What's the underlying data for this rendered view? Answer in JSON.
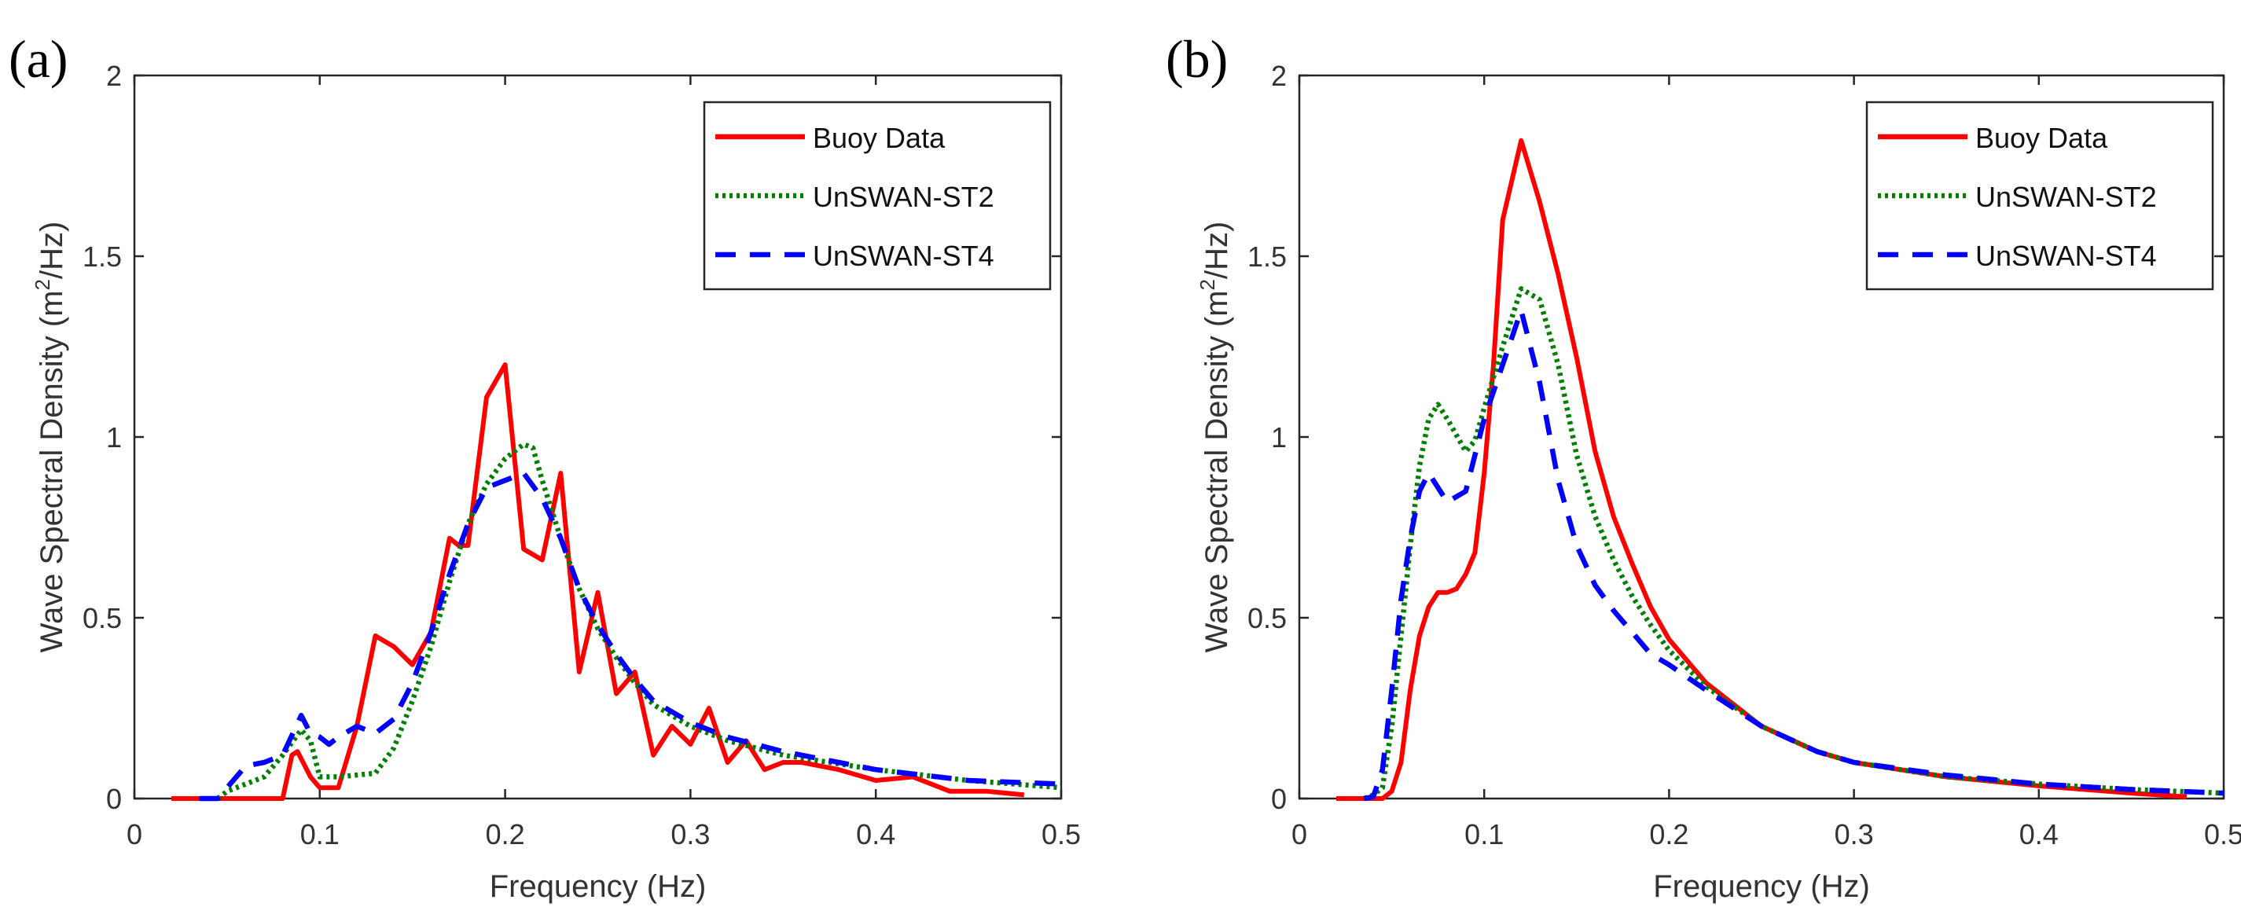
{
  "chart_data": [
    {
      "type": "line",
      "panel_label": "(a)",
      "xlabel": "Frequency (Hz)",
      "ylabel_main": "Wave Spectral Density (m",
      "ylabel_sup": "2",
      "ylabel_end": "/Hz)",
      "xlim": [
        0,
        0.5
      ],
      "ylim": [
        0,
        2
      ],
      "xticks": [
        "0",
        "0.1",
        "0.2",
        "0.3",
        "0.4",
        "0.5"
      ],
      "yticks": [
        "0",
        "0.5",
        "1",
        "1.5",
        "2"
      ],
      "grid": false,
      "legend_position": "top-right",
      "series": [
        {
          "name": "Buoy Data",
          "color": "#ff0000",
          "style": "solid",
          "x": [
            0.02,
            0.08,
            0.085,
            0.088,
            0.095,
            0.1,
            0.11,
            0.12,
            0.13,
            0.14,
            0.15,
            0.16,
            0.17,
            0.175,
            0.18,
            0.19,
            0.2,
            0.21,
            0.22,
            0.23,
            0.24,
            0.25,
            0.26,
            0.27,
            0.28,
            0.29,
            0.3,
            0.31,
            0.32,
            0.33,
            0.34,
            0.35,
            0.36,
            0.38,
            0.4,
            0.42,
            0.44,
            0.46,
            0.48
          ],
          "y": [
            0,
            0,
            0.12,
            0.13,
            0.06,
            0.03,
            0.03,
            0.2,
            0.45,
            0.42,
            0.37,
            0.46,
            0.72,
            0.7,
            0.7,
            1.11,
            1.2,
            0.69,
            0.66,
            0.9,
            0.35,
            0.57,
            0.29,
            0.35,
            0.12,
            0.2,
            0.15,
            0.25,
            0.1,
            0.16,
            0.08,
            0.1,
            0.1,
            0.08,
            0.05,
            0.06,
            0.02,
            0.02,
            0.01
          ]
        },
        {
          "name": "UnSWAN-ST2",
          "color": "#008000",
          "style": "dotted",
          "x": [
            0.045,
            0.05,
            0.06,
            0.07,
            0.08,
            0.09,
            0.095,
            0.1,
            0.11,
            0.13,
            0.14,
            0.15,
            0.16,
            0.17,
            0.18,
            0.19,
            0.2,
            0.21,
            0.215,
            0.22,
            0.23,
            0.24,
            0.25,
            0.26,
            0.27,
            0.28,
            0.3,
            0.32,
            0.35,
            0.4,
            0.45,
            0.5
          ],
          "y": [
            0,
            0.02,
            0.04,
            0.06,
            0.12,
            0.19,
            0.16,
            0.06,
            0.06,
            0.07,
            0.14,
            0.27,
            0.42,
            0.6,
            0.76,
            0.87,
            0.94,
            0.98,
            0.97,
            0.88,
            0.72,
            0.58,
            0.47,
            0.39,
            0.32,
            0.26,
            0.2,
            0.16,
            0.12,
            0.08,
            0.05,
            0.03
          ]
        },
        {
          "name": "UnSWAN-ST4",
          "color": "#0000ff",
          "style": "dashed",
          "x": [
            0.035,
            0.045,
            0.055,
            0.06,
            0.07,
            0.08,
            0.09,
            0.095,
            0.1,
            0.105,
            0.11,
            0.12,
            0.13,
            0.14,
            0.15,
            0.16,
            0.17,
            0.18,
            0.19,
            0.2,
            0.21,
            0.22,
            0.23,
            0.24,
            0.25,
            0.26,
            0.27,
            0.28,
            0.3,
            0.32,
            0.35,
            0.4,
            0.45,
            0.5
          ],
          "y": [
            0,
            0,
            0.06,
            0.09,
            0.1,
            0.12,
            0.23,
            0.18,
            0.17,
            0.15,
            0.17,
            0.2,
            0.18,
            0.22,
            0.32,
            0.46,
            0.62,
            0.76,
            0.86,
            0.88,
            0.9,
            0.83,
            0.72,
            0.58,
            0.48,
            0.4,
            0.33,
            0.27,
            0.21,
            0.17,
            0.13,
            0.08,
            0.05,
            0.04
          ]
        }
      ]
    },
    {
      "type": "line",
      "panel_label": "(b)",
      "xlabel": "Frequency (Hz)",
      "ylabel_main": "Wave Spectral Density (m",
      "ylabel_sup": "2",
      "ylabel_end": "/Hz)",
      "xlim": [
        0,
        0.5
      ],
      "ylim": [
        0,
        2
      ],
      "xticks": [
        "0",
        "0.1",
        "0.2",
        "0.3",
        "0.4",
        "0.5"
      ],
      "yticks": [
        "0",
        "0.5",
        "1",
        "1.5",
        "2"
      ],
      "grid": false,
      "legend_position": "top-right",
      "series": [
        {
          "name": "Buoy Data",
          "color": "#ff0000",
          "style": "solid",
          "x": [
            0.02,
            0.045,
            0.05,
            0.055,
            0.06,
            0.065,
            0.07,
            0.075,
            0.08,
            0.085,
            0.09,
            0.095,
            0.1,
            0.105,
            0.11,
            0.12,
            0.13,
            0.14,
            0.15,
            0.16,
            0.17,
            0.18,
            0.19,
            0.2,
            0.22,
            0.25,
            0.28,
            0.3,
            0.35,
            0.4,
            0.45,
            0.48
          ],
          "y": [
            0,
            0,
            0.02,
            0.1,
            0.3,
            0.45,
            0.53,
            0.57,
            0.57,
            0.58,
            0.62,
            0.68,
            0.9,
            1.2,
            1.6,
            1.82,
            1.65,
            1.45,
            1.22,
            0.96,
            0.78,
            0.65,
            0.53,
            0.44,
            0.32,
            0.2,
            0.13,
            0.1,
            0.06,
            0.035,
            0.015,
            0.005
          ]
        },
        {
          "name": "UnSWAN-ST2",
          "color": "#008000",
          "style": "dotted",
          "x": [
            0.035,
            0.04,
            0.045,
            0.05,
            0.055,
            0.06,
            0.065,
            0.07,
            0.075,
            0.08,
            0.09,
            0.095,
            0.1,
            0.11,
            0.12,
            0.13,
            0.14,
            0.15,
            0.16,
            0.17,
            0.18,
            0.19,
            0.2,
            0.22,
            0.25,
            0.28,
            0.3,
            0.35,
            0.4,
            0.45,
            0.5
          ],
          "y": [
            0,
            0.01,
            0.03,
            0.2,
            0.45,
            0.7,
            0.92,
            1.05,
            1.09,
            1.05,
            0.96,
            0.99,
            1.08,
            1.25,
            1.41,
            1.38,
            1.2,
            0.95,
            0.78,
            0.66,
            0.56,
            0.48,
            0.41,
            0.31,
            0.2,
            0.13,
            0.1,
            0.06,
            0.04,
            0.025,
            0.015
          ]
        },
        {
          "name": "UnSWAN-ST4",
          "color": "#0000ff",
          "style": "dashed",
          "x": [
            0.035,
            0.04,
            0.045,
            0.05,
            0.055,
            0.06,
            0.065,
            0.07,
            0.08,
            0.09,
            0.1,
            0.11,
            0.12,
            0.13,
            0.14,
            0.15,
            0.16,
            0.17,
            0.18,
            0.19,
            0.2,
            0.22,
            0.25,
            0.28,
            0.3,
            0.35,
            0.4,
            0.45,
            0.5
          ],
          "y": [
            0,
            0.005,
            0.08,
            0.3,
            0.55,
            0.72,
            0.85,
            0.9,
            0.82,
            0.85,
            1.05,
            1.2,
            1.35,
            1.15,
            0.88,
            0.7,
            0.59,
            0.52,
            0.46,
            0.4,
            0.37,
            0.3,
            0.2,
            0.13,
            0.1,
            0.065,
            0.04,
            0.025,
            0.015
          ]
        }
      ]
    }
  ]
}
